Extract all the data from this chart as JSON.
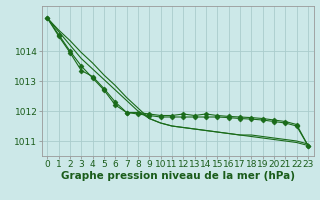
{
  "xlabel": "Graphe pression niveau de la mer (hPa)",
  "hours": [
    0,
    1,
    2,
    3,
    4,
    5,
    6,
    7,
    8,
    9,
    10,
    11,
    12,
    13,
    14,
    15,
    16,
    17,
    18,
    19,
    20,
    21,
    22,
    23
  ],
  "line_straight1": [
    1015.1,
    1014.7,
    1014.35,
    1013.95,
    1013.6,
    1013.2,
    1012.85,
    1012.45,
    1012.1,
    1011.75,
    1011.6,
    1011.5,
    1011.45,
    1011.4,
    1011.35,
    1011.3,
    1011.25,
    1011.2,
    1011.2,
    1011.15,
    1011.1,
    1011.05,
    1011.0,
    1010.9
  ],
  "line_straight2": [
    1015.1,
    1014.65,
    1014.2,
    1013.75,
    1013.4,
    1013.05,
    1012.7,
    1012.35,
    1012.0,
    1011.75,
    1011.6,
    1011.5,
    1011.45,
    1011.4,
    1011.35,
    1011.3,
    1011.25,
    1011.2,
    1011.15,
    1011.1,
    1011.05,
    1011.0,
    1010.95,
    1010.85
  ],
  "line_marker1": [
    1015.1,
    1014.5,
    1013.95,
    1013.35,
    1013.15,
    1012.75,
    1012.3,
    1011.95,
    1011.9,
    1011.85,
    1011.8,
    1011.8,
    1011.8,
    1011.8,
    1011.8,
    1011.8,
    1011.78,
    1011.75,
    1011.73,
    1011.7,
    1011.65,
    1011.6,
    1011.5,
    1010.85
  ],
  "line_marker2": [
    1015.1,
    1014.55,
    1014.0,
    1013.5,
    1013.1,
    1012.7,
    1012.2,
    1011.95,
    1011.95,
    1011.9,
    1011.85,
    1011.85,
    1011.9,
    1011.85,
    1011.9,
    1011.85,
    1011.82,
    1011.8,
    1011.78,
    1011.75,
    1011.7,
    1011.65,
    1011.55,
    1010.85
  ],
  "bg_color": "#cce8e8",
  "grid_color": "#aacccc",
  "line_color": "#1a6b1a",
  "marker_color": "#1a6b1a",
  "ylim_min": 1010.5,
  "ylim_max": 1015.5,
  "yticks": [
    1011,
    1012,
    1013,
    1014
  ],
  "tick_label_color": "#1a5c1a",
  "xlabel_color": "#1a5c1a",
  "xlabel_fontsize": 7.5,
  "tick_fontsize": 6.5,
  "marker_size": 2.5,
  "line_width": 0.8
}
